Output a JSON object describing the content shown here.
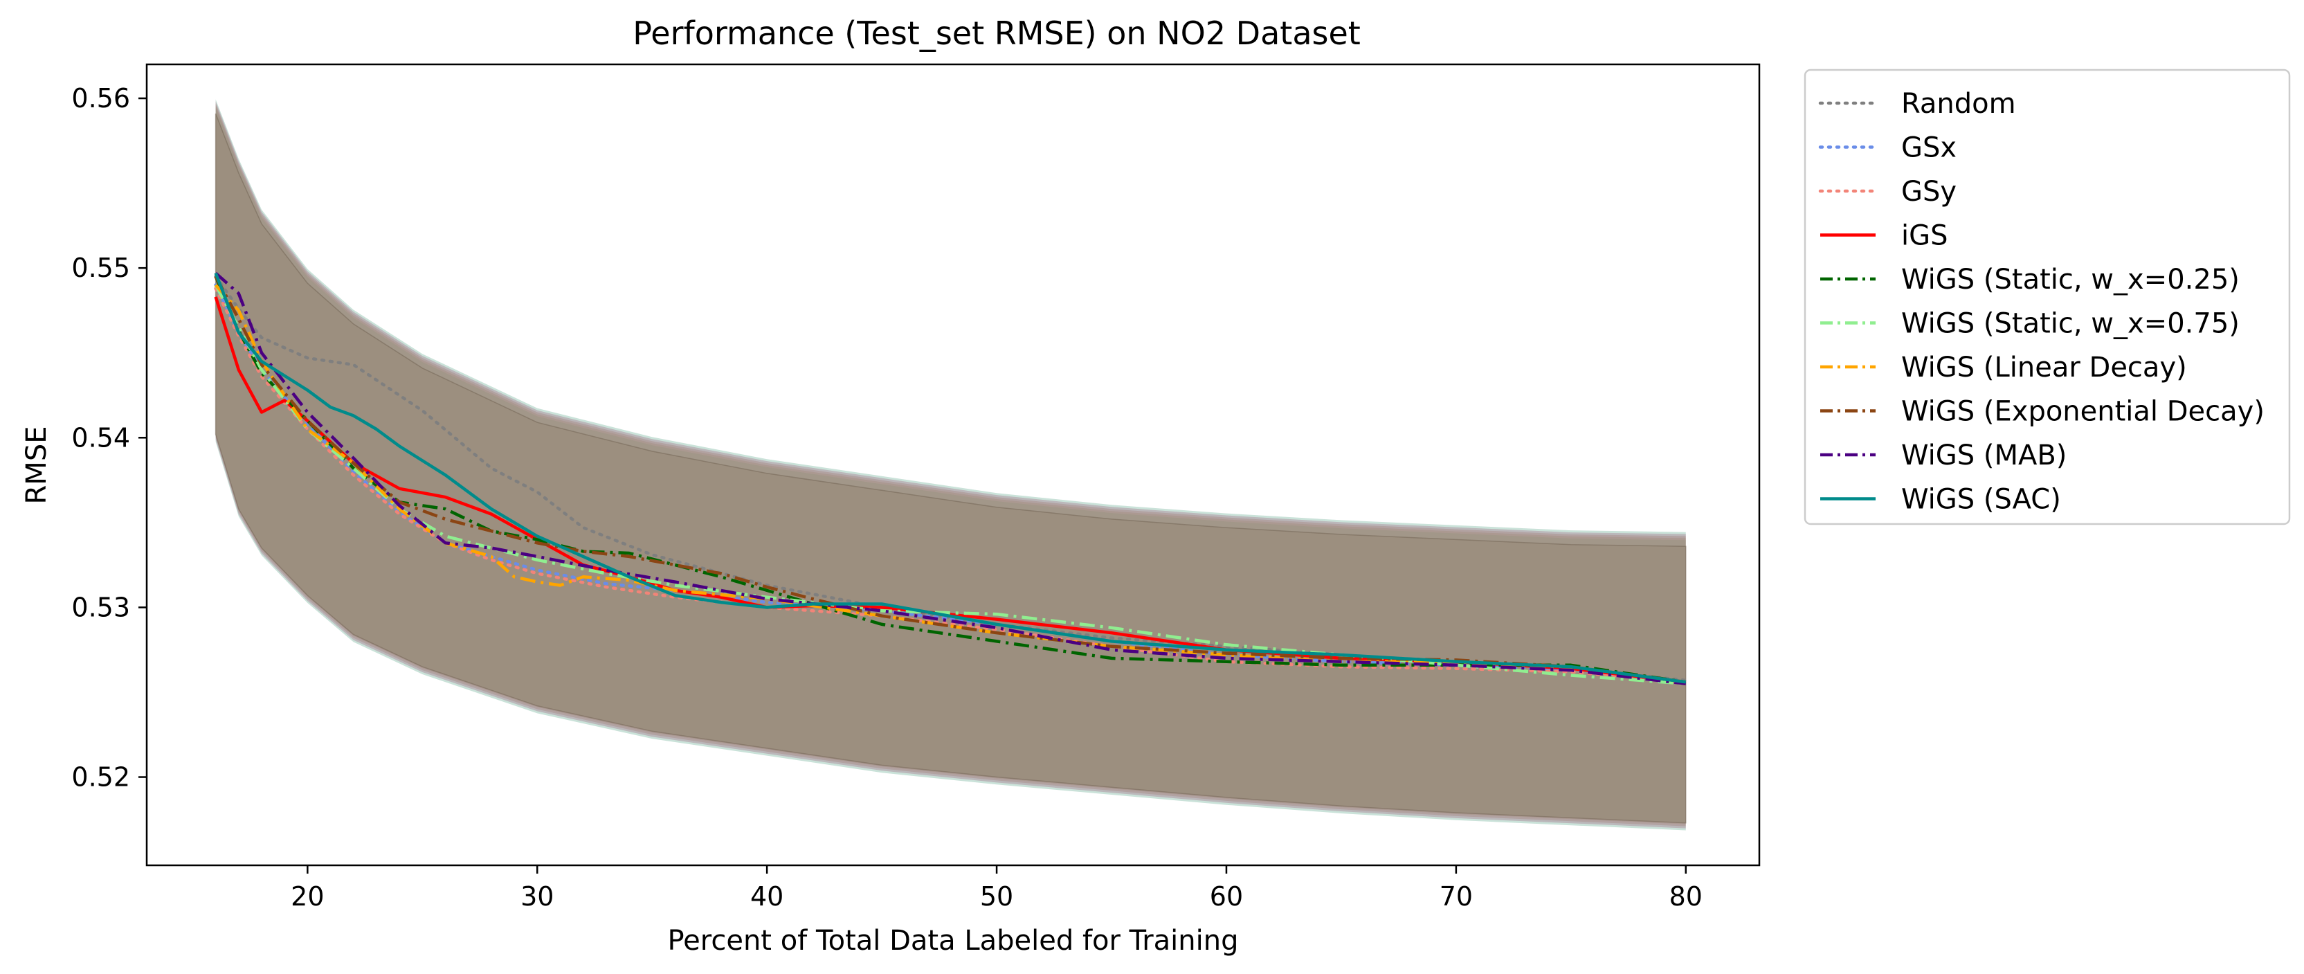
{
  "chart_data": {
    "type": "line",
    "title": "Performance (Test_set RMSE) on NO2 Dataset",
    "xlabel": "Percent of Total Data Labeled for Training",
    "ylabel": "RMSE",
    "xlim": [
      13,
      83.2
    ],
    "ylim": [
      0.5148,
      0.562
    ],
    "xticks": [
      20,
      30,
      40,
      50,
      60,
      70,
      80
    ],
    "yticks": [
      0.52,
      0.53,
      0.54,
      0.55,
      0.56
    ],
    "xtick_labels": [
      "20",
      "30",
      "40",
      "50",
      "60",
      "70",
      "80"
    ],
    "ytick_labels": [
      "0.52",
      "0.53",
      "0.54",
      "0.55",
      "0.56"
    ],
    "grid": false,
    "legend_position": "outside-right-top",
    "band": {
      "description": "shaded standard-deviation band around each series",
      "x": [
        16,
        17,
        18,
        20,
        22,
        25,
        30,
        35,
        40,
        45,
        50,
        55,
        60,
        65,
        70,
        75,
        80
      ],
      "upper": [
        0.5597,
        0.5562,
        0.5532,
        0.5497,
        0.5473,
        0.5447,
        0.5415,
        0.5398,
        0.5385,
        0.5375,
        0.5365,
        0.5358,
        0.5353,
        0.5349,
        0.5346,
        0.5343,
        0.5342
      ],
      "lower": [
        0.54,
        0.5356,
        0.5333,
        0.5305,
        0.5282,
        0.5263,
        0.524,
        0.5225,
        0.5215,
        0.5205,
        0.5198,
        0.5192,
        0.5186,
        0.5181,
        0.5177,
        0.5174,
        0.5171
      ]
    },
    "series": [
      {
        "name": "Random",
        "color": "#7f7f7f",
        "dash": "dotted",
        "x": [
          16,
          17,
          18,
          20,
          22,
          25,
          28,
          30,
          32,
          35,
          40,
          45,
          50,
          55,
          60,
          65,
          70,
          75,
          80
        ],
        "y": [
          0.5495,
          0.5476,
          0.5459,
          0.5447,
          0.5443,
          0.5416,
          0.5382,
          0.5368,
          0.5347,
          0.5331,
          0.5313,
          0.53,
          0.529,
          0.5282,
          0.5277,
          0.5272,
          0.5268,
          0.5264,
          0.5257
        ]
      },
      {
        "name": "GSx",
        "color": "#6a8de8",
        "dash": "dotted",
        "x": [
          16,
          17,
          18,
          20,
          22,
          24,
          26,
          28,
          30,
          33,
          36,
          40,
          45,
          50,
          55,
          60,
          65,
          70,
          75,
          80
        ],
        "y": [
          0.549,
          0.5462,
          0.544,
          0.5408,
          0.538,
          0.5356,
          0.5338,
          0.533,
          0.5322,
          0.5314,
          0.531,
          0.5303,
          0.5298,
          0.529,
          0.528,
          0.5272,
          0.5268,
          0.5266,
          0.5263,
          0.5256
        ]
      },
      {
        "name": "GSy",
        "color": "#f28478",
        "dash": "dotted",
        "x": [
          16,
          17,
          18,
          20,
          22,
          24,
          26,
          28,
          30,
          33,
          36,
          40,
          45,
          50,
          55,
          60,
          65,
          70,
          75,
          80
        ],
        "y": [
          0.5488,
          0.546,
          0.5436,
          0.5405,
          0.5378,
          0.5355,
          0.5338,
          0.5328,
          0.532,
          0.5312,
          0.5306,
          0.53,
          0.5295,
          0.5287,
          0.5277,
          0.5268,
          0.5265,
          0.5264,
          0.5262,
          0.5256
        ]
      },
      {
        "name": "iGS",
        "color": "#ff0000",
        "dash": "solid",
        "x": [
          16,
          17,
          18,
          19,
          20,
          22,
          24,
          26,
          28,
          30,
          32,
          34,
          36,
          38,
          40,
          42,
          45,
          50,
          55,
          60,
          65,
          70,
          75,
          80
        ],
        "y": [
          0.5483,
          0.544,
          0.5415,
          0.5422,
          0.541,
          0.5385,
          0.537,
          0.5365,
          0.5355,
          0.534,
          0.5325,
          0.5318,
          0.531,
          0.5306,
          0.53,
          0.5301,
          0.53,
          0.5293,
          0.5285,
          0.5275,
          0.527,
          0.5268,
          0.5264,
          0.5256
        ]
      },
      {
        "name": "WiGS (Static, w_x=0.25)",
        "color": "#006400",
        "dash": "dashdot",
        "x": [
          16,
          17,
          18,
          20,
          22,
          24,
          26,
          28,
          30,
          32,
          34,
          36,
          38,
          40,
          42,
          45,
          50,
          55,
          60,
          65,
          70,
          75,
          80
        ],
        "y": [
          0.5495,
          0.5463,
          0.5438,
          0.541,
          0.5382,
          0.5362,
          0.5358,
          0.5345,
          0.534,
          0.5333,
          0.5332,
          0.5325,
          0.5318,
          0.531,
          0.5302,
          0.529,
          0.528,
          0.527,
          0.5268,
          0.5266,
          0.5266,
          0.5266,
          0.5256
        ]
      },
      {
        "name": "WiGS (Static, w_x=0.75)",
        "color": "#90ee90",
        "dash": "dashdot",
        "x": [
          16,
          17,
          18,
          20,
          22,
          24,
          26,
          28,
          30,
          33,
          36,
          40,
          45,
          50,
          55,
          60,
          65,
          70,
          75,
          80
        ],
        "y": [
          0.549,
          0.5465,
          0.544,
          0.5405,
          0.5382,
          0.5358,
          0.5342,
          0.5335,
          0.5328,
          0.532,
          0.5313,
          0.5306,
          0.5298,
          0.5296,
          0.5288,
          0.5278,
          0.5272,
          0.5266,
          0.526,
          0.5255
        ]
      },
      {
        "name": "WiGS (Linear Decay)",
        "color": "#ffa500",
        "dash": "dashdot",
        "x": [
          16,
          17,
          18,
          20,
          22,
          24,
          26,
          28,
          29,
          30,
          31,
          32,
          34,
          36,
          40,
          45,
          50,
          55,
          60,
          65,
          70,
          75,
          80
        ],
        "y": [
          0.549,
          0.5475,
          0.5445,
          0.5405,
          0.5385,
          0.5358,
          0.5338,
          0.533,
          0.5318,
          0.5315,
          0.5313,
          0.5318,
          0.5316,
          0.531,
          0.5305,
          0.5295,
          0.5285,
          0.5277,
          0.5272,
          0.5268,
          0.5268,
          0.5264,
          0.5256
        ]
      },
      {
        "name": "WiGS (Exponential Decay)",
        "color": "#8b4513",
        "dash": "dashdot",
        "x": [
          16,
          17,
          18,
          20,
          22,
          24,
          26,
          28,
          30,
          32,
          34,
          36,
          38,
          40,
          42,
          45,
          50,
          55,
          60,
          65,
          70,
          75,
          80
        ],
        "y": [
          0.5495,
          0.547,
          0.5443,
          0.541,
          0.5385,
          0.5362,
          0.5352,
          0.5345,
          0.5338,
          0.5333,
          0.533,
          0.5325,
          0.532,
          0.5312,
          0.5305,
          0.5295,
          0.5285,
          0.5277,
          0.5273,
          0.527,
          0.5269,
          0.5265,
          0.5256
        ]
      },
      {
        "name": "WiGS (MAB)",
        "color": "#4b0082",
        "dash": "dashdot",
        "x": [
          16,
          17,
          18,
          20,
          22,
          24,
          26,
          28,
          30,
          33,
          36,
          40,
          45,
          50,
          55,
          60,
          65,
          70,
          75,
          80
        ],
        "y": [
          0.5497,
          0.5485,
          0.545,
          0.5415,
          0.5388,
          0.536,
          0.5338,
          0.5335,
          0.533,
          0.5322,
          0.5315,
          0.5305,
          0.5298,
          0.5288,
          0.5275,
          0.527,
          0.5268,
          0.5266,
          0.5263,
          0.5255
        ]
      },
      {
        "name": "WiGS (SAC)",
        "color": "#008b8b",
        "dash": "solid",
        "x": [
          16,
          17,
          18,
          20,
          21,
          22,
          23,
          24,
          26,
          28,
          30,
          32,
          34,
          36,
          38,
          40,
          42,
          45,
          50,
          55,
          60,
          65,
          70,
          75,
          80
        ],
        "y": [
          0.5497,
          0.5462,
          0.5445,
          0.5428,
          0.5418,
          0.5413,
          0.5405,
          0.5395,
          0.5378,
          0.5358,
          0.5342,
          0.533,
          0.5318,
          0.5307,
          0.5303,
          0.53,
          0.5302,
          0.5302,
          0.529,
          0.528,
          0.5275,
          0.5272,
          0.5268,
          0.5265,
          0.5256
        ]
      }
    ]
  }
}
